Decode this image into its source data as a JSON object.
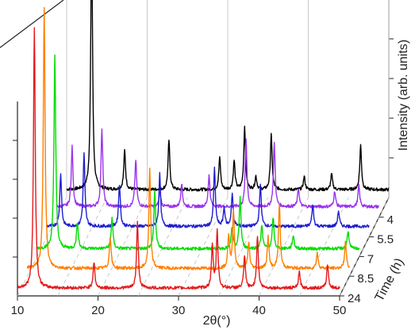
{
  "chart_data": {
    "type": "line",
    "style": "3d-waterfall",
    "title": "",
    "xlabel": "2θ(°)",
    "ylabel": "Intensity (arb. units)",
    "zlabel": "Time (h)",
    "xlim": [
      10,
      50
    ],
    "x_ticks": [
      "10",
      "20",
      "30",
      "40",
      "50"
    ],
    "z_ticks": [
      "4",
      "5.5",
      "7",
      "8.5",
      "24"
    ],
    "grid": "vertical lines on back wall",
    "series": [
      {
        "name": "24",
        "color": "#e41a1c",
        "baseline": 0.03,
        "peaks": [
          [
            12.1,
            1.0
          ],
          [
            19.5,
            0.1
          ],
          [
            24.9,
            0.25
          ],
          [
            34.2,
            0.16
          ],
          [
            34.8,
            0.22
          ],
          [
            38.2,
            0.12
          ],
          [
            39.8,
            0.2
          ],
          [
            45.0,
            0.06
          ],
          [
            48.5,
            0.09
          ]
        ]
      },
      {
        "name": "8.5",
        "color": "#ff7f00",
        "baseline": 0.03,
        "peaks": [
          [
            12.1,
            1.0
          ],
          [
            20.3,
            0.12
          ],
          [
            25.2,
            0.38
          ],
          [
            35.0,
            0.12
          ],
          [
            35.6,
            0.22
          ],
          [
            37.5,
            0.1
          ],
          [
            39.9,
            0.12
          ],
          [
            41.3,
            0.25
          ],
          [
            46.0,
            0.06
          ],
          [
            49.5,
            0.1
          ]
        ]
      },
      {
        "name": "7",
        "color": "#00dd00",
        "baseline": 0.03,
        "peaks": [
          [
            12.2,
            0.74
          ],
          [
            15.0,
            0.1
          ],
          [
            19.3,
            0.12
          ],
          [
            24.6,
            0.22
          ],
          [
            34.2,
            0.08
          ],
          [
            35.2,
            0.2
          ],
          [
            37.9,
            0.09
          ],
          [
            39.3,
            0.12
          ],
          [
            41.8,
            0.05
          ],
          [
            48.6,
            0.07
          ]
        ]
      },
      {
        "name": "5.5",
        "color": "#1e1ed2",
        "baseline": 0.04,
        "peaks": [
          [
            11.7,
            0.2
          ],
          [
            14.6,
            0.28
          ],
          [
            19.0,
            0.16
          ],
          [
            24.0,
            0.2
          ],
          [
            30.8,
            0.22
          ],
          [
            32.0,
            0.07
          ],
          [
            33.0,
            0.12
          ],
          [
            36.5,
            0.16
          ],
          [
            43.0,
            0.08
          ],
          [
            46.2,
            0.06
          ]
        ]
      },
      {
        "name": "4",
        "color": "#9933ee",
        "baseline": 0.04,
        "peaks": [
          [
            11.9,
            0.23
          ],
          [
            15.6,
            0.3
          ],
          [
            19.8,
            0.18
          ],
          [
            22.8,
            0.06
          ],
          [
            25.5,
            0.09
          ],
          [
            28.9,
            0.12
          ],
          [
            33.5,
            0.26
          ],
          [
            37.0,
            0.24
          ],
          [
            40.0,
            0.07
          ],
          [
            44.5,
            0.06
          ],
          [
            47.5,
            0.08
          ]
        ]
      },
      {
        "name": "",
        "color": "#000000",
        "baseline": 0.03,
        "peaks": [
          [
            13.1,
            1.0
          ],
          [
            17.2,
            0.15
          ],
          [
            22.7,
            0.19
          ],
          [
            29.0,
            0.12
          ],
          [
            30.8,
            0.11
          ],
          [
            32.1,
            0.24
          ],
          [
            33.5,
            0.05
          ],
          [
            35.4,
            0.21
          ],
          [
            39.5,
            0.05
          ],
          [
            42.9,
            0.06
          ],
          [
            46.5,
            0.17
          ]
        ]
      }
    ]
  }
}
